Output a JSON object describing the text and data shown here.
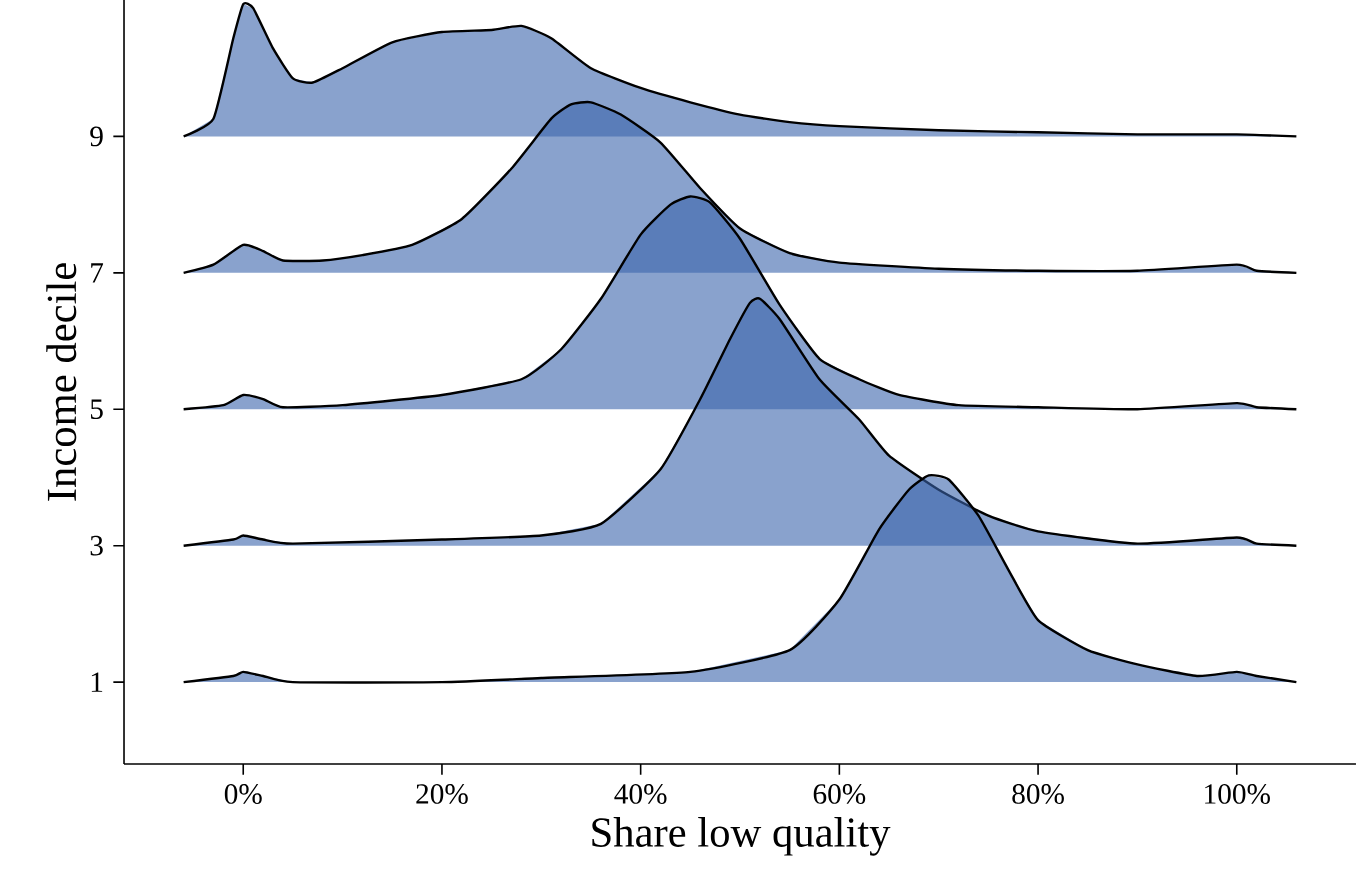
{
  "chart_data": {
    "type": "area",
    "xlabel": "Share low quality",
    "ylabel": "Income decile",
    "xlim": [
      -12,
      112
    ],
    "ylim": [
      -0.2,
      11
    ],
    "xticks": [
      {
        "value": 0,
        "label": "0%"
      },
      {
        "value": 20,
        "label": "20%"
      },
      {
        "value": 40,
        "label": "40%"
      },
      {
        "value": 60,
        "label": "60%"
      },
      {
        "value": 80,
        "label": "80%"
      },
      {
        "value": 100,
        "label": "100%"
      }
    ],
    "yticks": [
      1,
      3,
      5,
      7,
      9
    ],
    "series": [
      {
        "color": "#3a64ac",
        "x": [
          -6,
          -3,
          -1,
          0,
          1,
          3,
          5,
          7,
          10,
          15,
          20,
          25,
          28,
          31,
          35,
          40,
          45,
          50,
          55,
          60,
          70,
          80,
          90,
          100,
          106
        ],
        "values": [
          9.0,
          9.26,
          10.44,
          10.94,
          10.88,
          10.29,
          9.85,
          9.79,
          10.0,
          10.38,
          10.53,
          10.56,
          10.62,
          10.44,
          10.0,
          9.71,
          9.5,
          9.32,
          9.21,
          9.15,
          9.09,
          9.06,
          9.03,
          9.03,
          9.0
        ]
      },
      {
        "color": "#3a64ac",
        "x": [
          -6,
          -3,
          0,
          2,
          4,
          8,
          12,
          17,
          22,
          27,
          31,
          33,
          35,
          38,
          42,
          46,
          50,
          55,
          60,
          70,
          80,
          90,
          100,
          102,
          106
        ],
        "values": [
          7.0,
          7.12,
          7.41,
          7.32,
          7.18,
          7.18,
          7.26,
          7.41,
          7.79,
          8.53,
          9.26,
          9.47,
          9.5,
          9.32,
          8.91,
          8.24,
          7.65,
          7.29,
          7.15,
          7.06,
          7.03,
          7.03,
          7.12,
          7.03,
          7.0
        ]
      },
      {
        "color": "#3a64ac",
        "x": [
          -6,
          -2,
          0,
          2,
          4,
          10,
          20,
          28,
          32,
          36,
          40,
          43,
          45,
          47,
          50,
          54,
          58,
          62,
          66,
          72,
          80,
          90,
          100,
          102,
          106
        ],
        "values": [
          5.0,
          5.06,
          5.21,
          5.15,
          5.03,
          5.06,
          5.21,
          5.44,
          5.88,
          6.62,
          7.56,
          8.0,
          8.12,
          8.03,
          7.5,
          6.53,
          5.74,
          5.44,
          5.21,
          5.06,
          5.03,
          5.0,
          5.09,
          5.03,
          5.0
        ]
      },
      {
        "color": "#3a64ac",
        "x": [
          -6,
          -1,
          0,
          2,
          5,
          20,
          30,
          36,
          42,
          46,
          49,
          51,
          52,
          54,
          58,
          62,
          65,
          70,
          75,
          80,
          90,
          100,
          102,
          106
        ],
        "values": [
          3.0,
          3.09,
          3.15,
          3.09,
          3.03,
          3.09,
          3.15,
          3.32,
          4.12,
          5.15,
          6.03,
          6.56,
          6.62,
          6.32,
          5.44,
          4.85,
          4.32,
          3.82,
          3.44,
          3.21,
          3.03,
          3.12,
          3.03,
          3.0
        ]
      },
      {
        "color": "#3a64ac",
        "x": [
          -6,
          -1,
          0,
          2,
          5,
          20,
          30,
          45,
          55,
          60,
          64,
          67,
          69,
          71,
          74,
          77,
          80,
          85,
          90,
          96,
          100,
          102,
          106
        ],
        "values": [
          1.0,
          1.09,
          1.15,
          1.09,
          1.0,
          1.0,
          1.06,
          1.15,
          1.47,
          2.21,
          3.24,
          3.82,
          4.03,
          3.97,
          3.44,
          2.65,
          1.91,
          1.47,
          1.26,
          1.09,
          1.15,
          1.09,
          1.0
        ]
      }
    ]
  }
}
